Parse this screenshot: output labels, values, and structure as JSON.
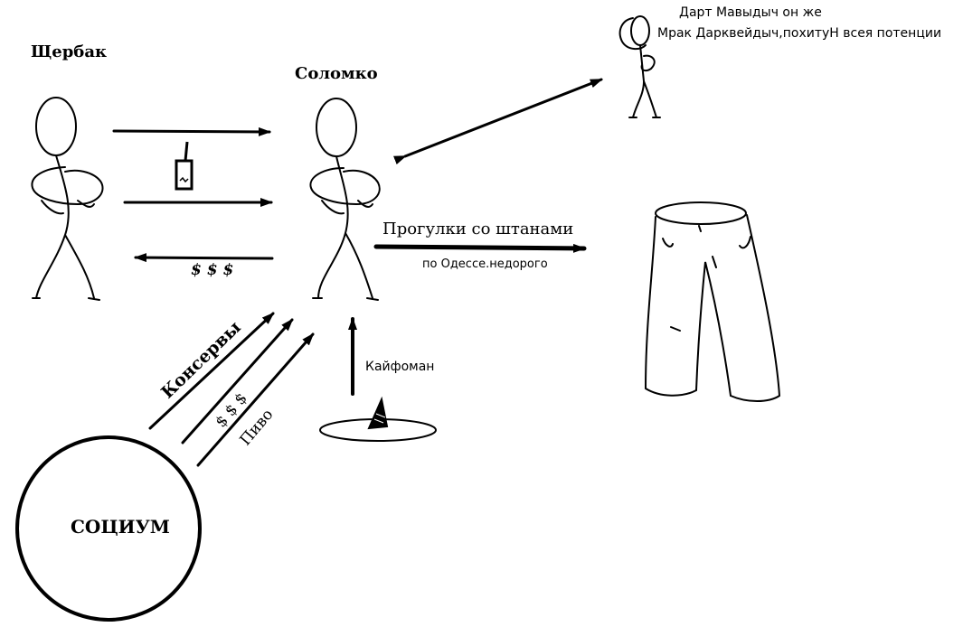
{
  "diagram": {
    "nodes": {
      "left_person": "Щербак",
      "center_person": "Соломко",
      "top_right_line1": "Дарт Мавыдыч он же",
      "top_right_line2": "Мрак Дарквейдыч,похитуН всея потенции",
      "society": "СОЦИУМ"
    },
    "edges": {
      "walks_pants": "Прогулки со штанами",
      "walks_pants_sub": "по Одессе.недорого",
      "money_back": "$ $ $",
      "canned": "Консервы",
      "money_up": "$ $ $",
      "beer": "Пиво",
      "kaifoman": "Кайфоман"
    }
  }
}
